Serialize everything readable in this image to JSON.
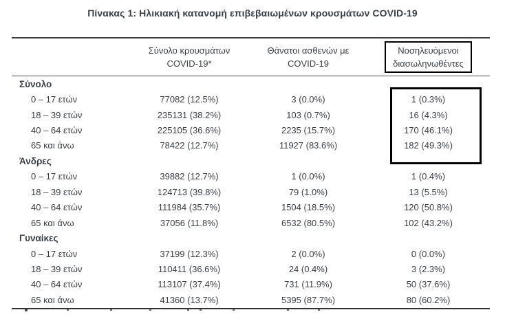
{
  "page": {
    "title": "Πίνακας 1: Ηλικιακή κατανομή επιβεβαιωμένων κρουσμάτων COVID-19"
  },
  "colors": {
    "text": "#3a3f48",
    "highlight_box": "#000000",
    "rule": "#3f3f42"
  },
  "table": {
    "columns": [
      {
        "line1": "Σύνολο κρουσμάτων",
        "line2": "COVID-19*"
      },
      {
        "line1": "Θάνατοι ασθενών με",
        "line2": "COVID-19"
      },
      {
        "line1": "Νοσηλευόμενοι",
        "line2": "διασωληνωθέντες",
        "boxed": true
      }
    ],
    "sections": [
      {
        "label": "Σύνολο",
        "rows": [
          {
            "age": "0 – 17 ετών",
            "cases": "77082 (12.5%)",
            "deaths": "3 (0.0%)",
            "intubated": "1 (0.3%)"
          },
          {
            "age": "18 – 39 ετών",
            "cases": "235131 (38.2%)",
            "deaths": "103 (0.7%)",
            "intubated": "16 (4.3%)"
          },
          {
            "age": "40 – 64 ετών",
            "cases": "225105 (36.6%)",
            "deaths": "2235 (15.7%)",
            "intubated": "170 (46.1%)"
          },
          {
            "age": "65 και άνω",
            "cases": "78422 (12.7%)",
            "deaths": "11927 (83.6%)",
            "intubated": "182 (49.3%)"
          }
        ]
      },
      {
        "label": "Άνδρες",
        "rows": [
          {
            "age": "0 – 17 ετών",
            "cases": "39882 (12.7%)",
            "deaths": "1 (0.0%)",
            "intubated": "1 (0.4%)"
          },
          {
            "age": "18 – 39 ετών",
            "cases": "124713 (39.8%)",
            "deaths": "79 (1.0%)",
            "intubated": "13 (5.5%)"
          },
          {
            "age": "40 – 64 ετών",
            "cases": "111984 (35.7%)",
            "deaths": "1504 (18.5%)",
            "intubated": "120 (50.8%)"
          },
          {
            "age": "65 και άνω",
            "cases": "37056 (11.8%)",
            "deaths": "6532 (80.5%)",
            "intubated": "102 (43.2%)"
          }
        ]
      },
      {
        "label": "Γυναίκες",
        "rows": [
          {
            "age": "0 – 17 ετών",
            "cases": "37199 (12.3%)",
            "deaths": "2 (0.0%)",
            "intubated": "0 (0.0%)"
          },
          {
            "age": "18 – 39 ετών",
            "cases": "110411 (36.6%)",
            "deaths": "24 (0.4%)",
            "intubated": "3 (2.3%)"
          },
          {
            "age": "40 – 64 ετών",
            "cases": "113107 (37.4%)",
            "deaths": "731 (11.9%)",
            "intubated": "50 (37.6%)"
          },
          {
            "age": "65 και άνω",
            "cases": "41360 (13.7%)",
            "deaths": "5395 (87.7%)",
            "intubated": "80 (60.2%)"
          }
        ]
      }
    ]
  },
  "footnote": {
    "marks_x": [
      36,
      97,
      160,
      217,
      272,
      290,
      338,
      417,
      462
    ]
  }
}
